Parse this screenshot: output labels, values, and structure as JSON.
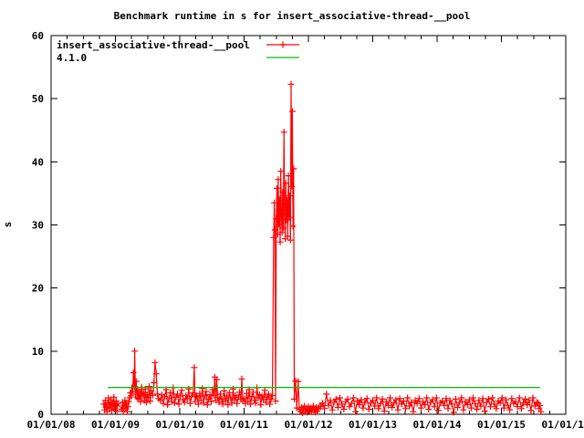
{
  "window": {
    "background": "#ffffff"
  },
  "chart_data": {
    "type": "line",
    "title": "Benchmark runtime in s for insert_associative-thread-__pool",
    "ylabel": "s",
    "xlabel": "",
    "ylim": [
      0,
      60
    ],
    "yticks": [
      0,
      10,
      20,
      30,
      40,
      50,
      60
    ],
    "xlim": [
      2008,
      2016
    ],
    "xticks": [
      2008,
      2009,
      2010,
      2011,
      2012,
      2013,
      2014,
      2015,
      2016
    ],
    "xtick_labels": [
      "01/01/08",
      "01/01/09",
      "01/01/10",
      "01/01/11",
      "01/01/12",
      "01/01/13",
      "01/01/14",
      "01/01/15",
      "01/01/16"
    ],
    "x_minor_tick_interval": 0.25,
    "grid": false,
    "legend_position": "top-left-inside",
    "legend": [
      {
        "label": "insert_associative-thread-__pool",
        "color": "#ff0000",
        "style": "linespoints"
      },
      {
        "label": "4.1.0",
        "color": "#00c000",
        "style": "line"
      }
    ],
    "series": [
      {
        "name": "insert_associative-thread-__pool",
        "color": "#ff0000",
        "marker": "plus",
        "style": "linespoints",
        "segments": [
          {
            "start": 2008.82,
            "step": 0.012,
            "values": [
              1.6,
              0.7,
              2.2,
              1.1,
              0.4,
              1.8,
              2.6,
              0.9,
              1.5,
              2.3,
              0.6,
              1.9,
              1.2,
              2.7,
              0.8,
              1.4,
              2.1,
              0.5,
              1.7
            ]
          },
          {
            "start": 2009.1,
            "step": 0.012,
            "values": [
              0.8,
              1.9,
              0.5,
              1.4,
              2.2,
              0.9,
              1.7,
              0.4,
              1.2,
              2.0
            ]
          },
          {
            "start": 2009.22,
            "step": 0.012,
            "values": [
              2.6,
              3.4,
              2.9,
              4.2,
              3.6,
              6.6,
              4.4
            ]
          },
          {
            "start": 2009.3,
            "step": 0.012,
            "values": [
              10.0,
              3.2,
              5.2,
              2.6,
              3.9
            ]
          },
          {
            "start": 2009.36,
            "step": 0.015,
            "values": [
              2.4,
              3.6,
              2.0,
              4.3,
              2.9,
              3.4,
              2.2,
              4.0,
              1.9,
              3.1,
              2.6,
              4.4,
              2.1,
              3.7
            ]
          },
          {
            "start": 2009.58,
            "step": 0.018,
            "values": [
              3.0,
              5.0,
              8.2,
              6.4,
              3.2,
              2.5
            ]
          },
          {
            "start": 2009.7,
            "step": 0.022,
            "values": [
              2.2,
              3.1,
              1.7,
              2.8,
              3.9,
              1.5,
              2.5,
              3.4,
              2.0,
              4.2,
              1.8,
              2.7,
              3.2,
              1.6,
              2.9,
              3.8,
              2.3,
              1.9,
              3.0,
              2.5,
              4.0,
              1.7,
              2.8
            ]
          },
          {
            "start": 2010.21,
            "step": 0.015,
            "values": [
              3.4,
              7.4,
              2.0,
              2.9
            ]
          },
          {
            "start": 2010.27,
            "step": 0.02,
            "values": [
              2.8,
              1.6,
              3.3,
              2.2,
              4.1,
              1.8,
              2.9,
              3.6,
              1.5,
              2.4,
              3.1,
              2.0,
              3.9
            ]
          },
          {
            "start": 2010.53,
            "step": 0.015,
            "values": [
              3.0,
              5.9,
              2.2,
              5.5,
              2.6
            ]
          },
          {
            "start": 2010.61,
            "step": 0.02,
            "values": [
              1.9,
              3.2,
              2.4,
              1.6,
              3.7,
              2.1,
              2.9,
              1.5,
              3.4,
              2.6,
              1.8,
              4.0,
              2.3,
              3.0,
              1.7,
              2.7,
              3.5
            ]
          },
          {
            "start": 2010.95,
            "step": 0.015,
            "values": [
              2.4,
              5.6,
              2.1
            ]
          },
          {
            "start": 2011.0,
            "step": 0.02,
            "values": [
              2.5,
              1.7,
              3.3,
              2.0,
              3.9,
              1.6,
              2.8,
              3.5,
              2.2,
              1.8,
              4.2,
              2.6,
              3.1,
              1.5,
              2.9,
              2.3,
              3.8,
              1.9,
              2.7,
              3.2,
              1.6,
              2.4,
              3.0
            ]
          },
          {
            "start": 2011.46,
            "step": 0.01,
            "values": [
              28.0,
              33.5,
              29.2,
              2.1,
              31.0,
              35.8,
              28.5,
              37.2,
              30.1,
              34.0,
              27.3,
              38.5,
              31.6,
              28.8,
              35.2,
              29.5,
              44.7,
              32.4,
              27.8,
              36.6,
              30.8,
              33.9,
              28.2,
              37.8,
              31.2,
              34.6,
              27.6,
              52.3,
              36.1,
              48.0,
              29.8,
              38.9,
              2.4
            ]
          },
          {
            "start": 2011.8,
            "step": 0.02,
            "values": [
              5.3,
              1.0,
              5.2,
              0.8
            ]
          },
          {
            "start": 2011.88,
            "step": 0.015,
            "values": [
              0.4,
              1.1,
              0.2,
              0.9,
              1.3,
              0.5,
              0.8,
              0.3,
              1.2,
              0.6,
              1.0,
              0.4,
              0.9,
              1.3,
              0.7,
              0.3,
              1.1,
              0.5,
              0.9,
              1.2
            ]
          },
          {
            "start": 2012.19,
            "step": 0.03,
            "values": [
              1.2,
              1.8,
              0.9,
              3.2,
              1.4,
              2.2,
              0.7,
              1.9,
              2.4,
              1.1,
              2.6,
              1.6,
              0.8,
              2.0,
              2.4,
              1.2,
              1.7,
              2.6,
              0.4,
              2.1,
              1.5,
              2.3,
              1.0,
              1.9,
              2.5,
              0.8,
              1.8,
              2.2,
              1.3,
              2.6,
              0.9,
              1.7,
              2.4,
              0.5,
              2.0,
              1.4,
              2.6,
              1.1,
              1.8,
              2.3,
              0.7,
              2.5,
              1.6,
              2.1,
              0.9,
              2.6,
              1.3,
              1.9,
              0.4,
              2.2,
              1.7,
              2.5,
              1.0,
              2.0,
              1.5,
              2.6,
              0.8,
              1.9,
              2.3,
              1.2,
              2.6,
              0.6,
              1.8,
              2.1,
              1.4,
              2.5,
              0.9,
              2.2,
              1.6,
              0.3,
              2.4,
              1.1,
              1.9,
              2.6,
              0.7,
              2.0,
              1.5,
              2.3,
              1.0,
              2.6,
              1.7,
              0.8,
              2.2,
              1.3,
              2.5,
              0.5,
              1.9,
              2.4,
              1.2,
              2.6,
              1.6,
              0.9,
              2.1,
              1.8,
              2.6,
              1.0,
              2.3,
              1.4,
              0.7,
              2.5,
              1.7,
              2.0,
              1.2,
              2.6,
              0.9,
              1.8,
              2.4,
              1.5,
              2.2,
              0.6,
              2.6,
              1.3,
              1.9
            ]
          },
          {
            "start": 2015.57,
            "step": 0.015,
            "values": [
              1.8,
              0.9,
              1.4,
              0.4
            ]
          }
        ]
      },
      {
        "name": "4.1.0",
        "color": "#00c000",
        "style": "hline",
        "x_start": 2008.88,
        "x_end": 2015.6,
        "value": 4.25
      }
    ],
    "axis_color": "#000000",
    "text_color": "#000000"
  }
}
